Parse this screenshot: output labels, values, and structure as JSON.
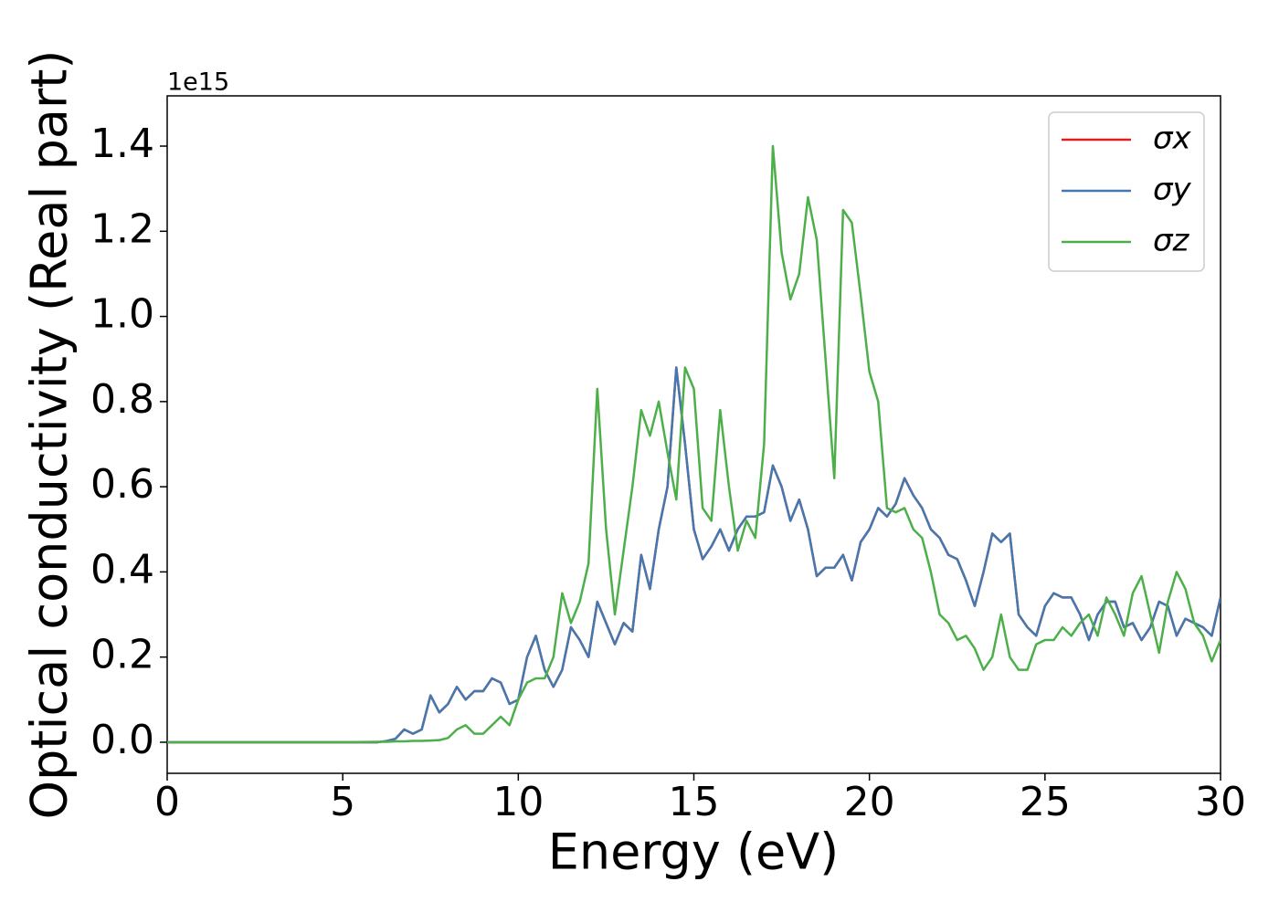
{
  "chart_data": {
    "type": "line",
    "xlabel": "Energy (eV)",
    "ylabel": "Optical conductivity (Real part)",
    "offset_label": "1e15",
    "x": [
      0,
      1,
      2,
      3,
      4,
      5,
      6,
      6.25,
      6.5,
      6.75,
      7,
      7.25,
      7.5,
      7.75,
      8,
      8.25,
      8.5,
      8.75,
      9,
      9.25,
      9.5,
      9.75,
      10,
      10.25,
      10.5,
      10.75,
      11,
      11.25,
      11.5,
      11.75,
      12,
      12.25,
      12.5,
      12.75,
      13,
      13.25,
      13.5,
      13.75,
      14,
      14.25,
      14.5,
      14.75,
      15,
      15.25,
      15.5,
      15.75,
      16,
      16.25,
      16.5,
      16.75,
      17,
      17.25,
      17.5,
      17.75,
      18,
      18.25,
      18.5,
      18.75,
      19,
      19.25,
      19.5,
      19.75,
      20,
      20.25,
      20.5,
      20.75,
      21,
      21.25,
      21.5,
      21.75,
      22,
      22.25,
      22.5,
      22.75,
      23,
      23.25,
      23.5,
      23.75,
      24,
      24.25,
      24.5,
      24.75,
      25,
      25.25,
      25.5,
      25.75,
      26,
      26.25,
      26.5,
      26.75,
      27,
      27.25,
      27.5,
      27.75,
      28,
      28.25,
      28.5,
      28.75,
      29,
      29.25,
      29.5,
      29.75,
      30
    ],
    "series": [
      {
        "name": "σx",
        "color": "#e41a1c",
        "values": [
          0,
          0,
          0,
          0,
          0,
          0,
          0.0,
          0.003,
          0.008,
          0.03,
          0.02,
          0.03,
          0.11,
          0.07,
          0.09,
          0.13,
          0.1,
          0.12,
          0.12,
          0.15,
          0.14,
          0.09,
          0.1,
          0.2,
          0.25,
          0.17,
          0.13,
          0.17,
          0.27,
          0.24,
          0.2,
          0.33,
          0.28,
          0.23,
          0.28,
          0.26,
          0.44,
          0.36,
          0.5,
          0.6,
          0.88,
          0.7,
          0.5,
          0.43,
          0.46,
          0.5,
          0.45,
          0.5,
          0.53,
          0.53,
          0.54,
          0.65,
          0.6,
          0.52,
          0.57,
          0.5,
          0.39,
          0.41,
          0.41,
          0.44,
          0.38,
          0.47,
          0.5,
          0.55,
          0.53,
          0.56,
          0.62,
          0.58,
          0.55,
          0.5,
          0.48,
          0.44,
          0.43,
          0.38,
          0.32,
          0.4,
          0.49,
          0.47,
          0.49,
          0.3,
          0.27,
          0.25,
          0.32,
          0.35,
          0.34,
          0.34,
          0.3,
          0.24,
          0.3,
          0.33,
          0.33,
          0.27,
          0.28,
          0.24,
          0.27,
          0.33,
          0.32,
          0.25,
          0.29,
          0.28,
          0.27,
          0.25,
          0.34
        ]
      },
      {
        "name": "σy",
        "color": "#4479b0",
        "values": [
          0,
          0,
          0,
          0,
          0,
          0,
          0.0,
          0.003,
          0.008,
          0.03,
          0.02,
          0.03,
          0.11,
          0.07,
          0.09,
          0.13,
          0.1,
          0.12,
          0.12,
          0.15,
          0.14,
          0.09,
          0.1,
          0.2,
          0.25,
          0.17,
          0.13,
          0.17,
          0.27,
          0.24,
          0.2,
          0.33,
          0.28,
          0.23,
          0.28,
          0.26,
          0.44,
          0.36,
          0.5,
          0.6,
          0.88,
          0.7,
          0.5,
          0.43,
          0.46,
          0.5,
          0.45,
          0.5,
          0.53,
          0.53,
          0.54,
          0.65,
          0.6,
          0.52,
          0.57,
          0.5,
          0.39,
          0.41,
          0.41,
          0.44,
          0.38,
          0.47,
          0.5,
          0.55,
          0.53,
          0.56,
          0.62,
          0.58,
          0.55,
          0.5,
          0.48,
          0.44,
          0.43,
          0.38,
          0.32,
          0.4,
          0.49,
          0.47,
          0.49,
          0.3,
          0.27,
          0.25,
          0.32,
          0.35,
          0.34,
          0.34,
          0.3,
          0.24,
          0.3,
          0.33,
          0.33,
          0.27,
          0.28,
          0.24,
          0.27,
          0.33,
          0.32,
          0.25,
          0.29,
          0.28,
          0.27,
          0.25,
          0.34
        ]
      },
      {
        "name": "σz",
        "color": "#4daf4a",
        "values": [
          0,
          0,
          0,
          0,
          0,
          0,
          0.001,
          0.001,
          0.002,
          0.002,
          0.003,
          0.003,
          0.004,
          0.005,
          0.01,
          0.03,
          0.04,
          0.02,
          0.02,
          0.04,
          0.06,
          0.04,
          0.1,
          0.14,
          0.15,
          0.15,
          0.2,
          0.35,
          0.28,
          0.33,
          0.42,
          0.83,
          0.5,
          0.3,
          0.45,
          0.6,
          0.78,
          0.72,
          0.8,
          0.68,
          0.57,
          0.88,
          0.83,
          0.55,
          0.52,
          0.78,
          0.6,
          0.45,
          0.52,
          0.48,
          0.7,
          1.4,
          1.15,
          1.04,
          1.1,
          1.28,
          1.18,
          0.9,
          0.62,
          1.25,
          1.22,
          1.05,
          0.87,
          0.8,
          0.55,
          0.54,
          0.55,
          0.5,
          0.48,
          0.4,
          0.3,
          0.28,
          0.24,
          0.25,
          0.22,
          0.17,
          0.2,
          0.3,
          0.2,
          0.17,
          0.17,
          0.23,
          0.24,
          0.24,
          0.27,
          0.25,
          0.28,
          0.3,
          0.25,
          0.34,
          0.3,
          0.25,
          0.35,
          0.39,
          0.3,
          0.21,
          0.33,
          0.4,
          0.36,
          0.28,
          0.25,
          0.19,
          0.24
        ]
      }
    ],
    "xlim": [
      0,
      30
    ],
    "xticks": [
      0,
      5,
      10,
      15,
      20,
      25,
      30
    ],
    "ylim": [
      -0.073,
      1.518
    ],
    "yticks": [
      {
        "value": 0,
        "label": "0.0"
      },
      0.2,
      0.4,
      0.6,
      0.8,
      {
        "value": 1,
        "label": "1.0"
      },
      1.2,
      1.4
    ],
    "grid": false,
    "legend": "upper right"
  }
}
